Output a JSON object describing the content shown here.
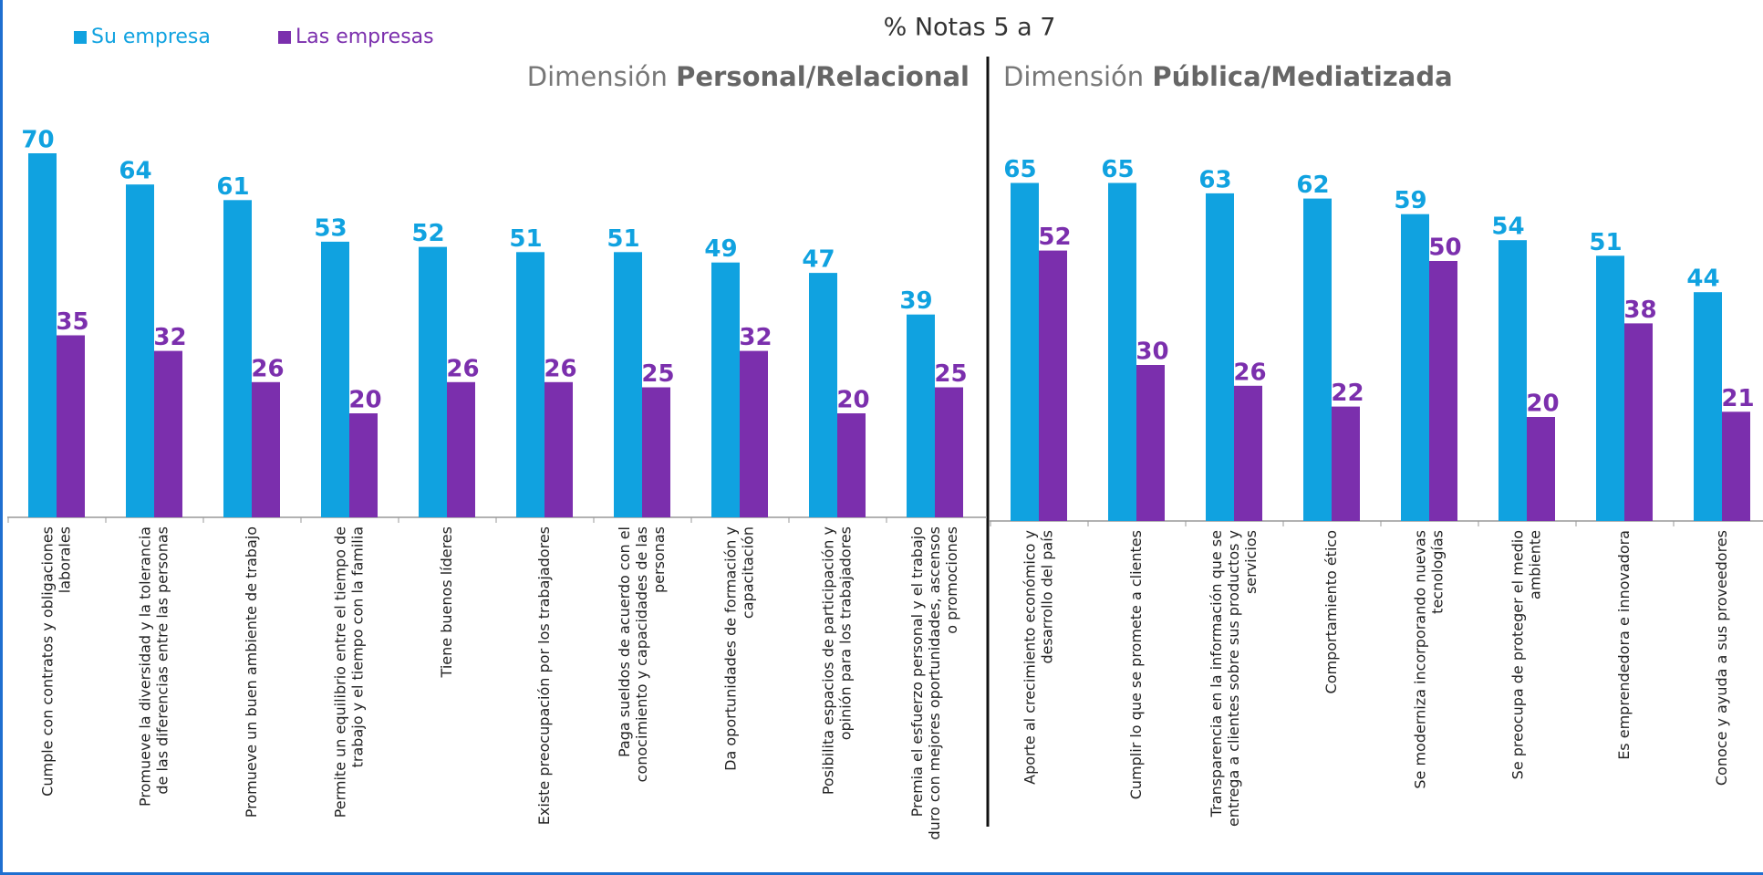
{
  "header": {
    "title": "% Notas 5 a 7"
  },
  "chart_data": [
    {
      "type": "bar",
      "title": {
        "prefix": "Dimensión",
        "main": "Personal/Relacional"
      },
      "categories": [
        "Cumple con contratos y obligaciones laborales",
        "Promueve la diversidad y la tolerancia de las diferencias entre las personas",
        "Promueve un buen ambiente de trabajo",
        "Permite un equilibrio entre el tiempo de trabajo y el tiempo con la familia",
        "Tiene buenos líderes",
        "Existe preocupación por los trabajadores",
        "Paga sueldos de acuerdo con el conocimiento y capacidades de las personas",
        "Da oportunidades de formación y capacitación",
        "Posibilita espacios de participación y opinión para los trabajadores",
        "Premia el esfuerzo personal y el trabajo duro con mejores oportunidades, ascensos o promociones"
      ],
      "series": [
        {
          "name": "Su empresa",
          "color": "#10a2e0",
          "values": [
            70,
            64,
            61,
            53,
            52,
            51,
            51,
            49,
            47,
            39
          ]
        },
        {
          "name": "Las empresas",
          "color": "#7b2fad",
          "values": [
            35,
            32,
            26,
            20,
            26,
            26,
            25,
            32,
            20,
            25
          ]
        }
      ]
    },
    {
      "type": "bar",
      "title": {
        "prefix": "Dimensión",
        "main": "Pública/Mediatizada"
      },
      "categories": [
        "Aporte al crecimiento económico y desarrollo del país",
        "Cumplir lo que se promete a clientes",
        "Transparencia en la información que se entrega a clientes sobre sus productos y servicios",
        "Comportamiento ético",
        "Se moderniza incorporando nuevas tecnologías",
        "Se preocupa de proteger el medio ambiente",
        "Es emprendedora e innovadora",
        "Conoce y ayuda a sus proveedores"
      ],
      "series": [
        {
          "color": "#10a2e0",
          "values": [
            65,
            65,
            63,
            62,
            59,
            54,
            51,
            44
          ]
        },
        {
          "color": "#7b2fad",
          "values": [
            52,
            30,
            26,
            22,
            50,
            20,
            38,
            21
          ]
        }
      ]
    }
  ]
}
